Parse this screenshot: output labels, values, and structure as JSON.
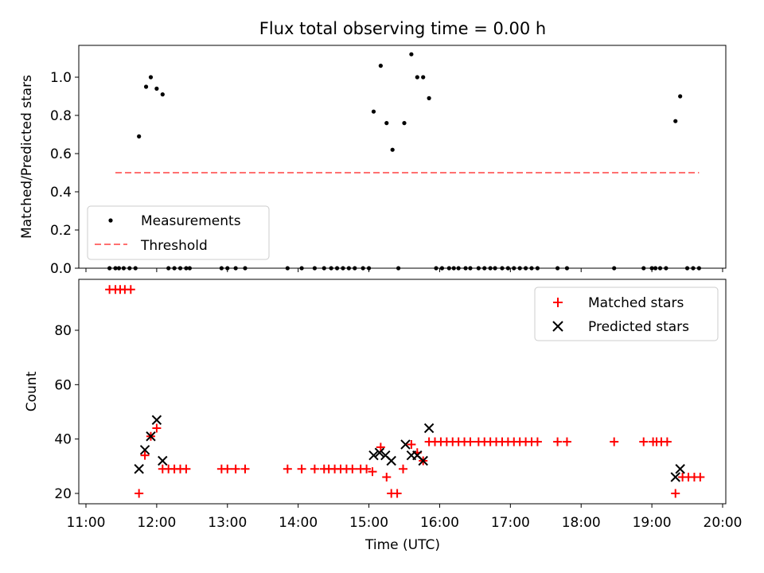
{
  "chart_data": [
    {
      "type": "scatter",
      "title": "Flux total observing time = 0.00 h",
      "xlabel": "",
      "ylabel": "Matched/Predicted stars",
      "xlim": [
        "11:00",
        "20:00"
      ],
      "ylim": [
        0,
        1.17
      ],
      "yticks": [
        "0.0",
        "0.2",
        "0.4",
        "0.6",
        "0.8",
        "1.0"
      ],
      "legend_location": "lower-left",
      "series": [
        {
          "name": "Measurements",
          "marker": "dot",
          "color": "#000000",
          "points": [
            [
              "11:20",
              0.0
            ],
            [
              "11:25",
              0.0
            ],
            [
              "11:28",
              0.0
            ],
            [
              "11:32",
              0.0
            ],
            [
              "11:37",
              0.0
            ],
            [
              "11:42",
              0.0
            ],
            [
              "11:45",
              0.69
            ],
            [
              "11:51",
              0.95
            ],
            [
              "11:55",
              1.0
            ],
            [
              "12:00",
              0.94
            ],
            [
              "12:05",
              0.91
            ],
            [
              "12:10",
              0.0
            ],
            [
              "12:15",
              0.0
            ],
            [
              "12:20",
              0.0
            ],
            [
              "12:25",
              0.0
            ],
            [
              "12:28",
              0.0
            ],
            [
              "12:55",
              0.0
            ],
            [
              "13:00",
              0.0
            ],
            [
              "13:07",
              0.0
            ],
            [
              "13:15",
              0.0
            ],
            [
              "13:51",
              0.0
            ],
            [
              "14:03",
              0.0
            ],
            [
              "14:14",
              0.0
            ],
            [
              "14:22",
              0.0
            ],
            [
              "14:28",
              0.0
            ],
            [
              "14:33",
              0.0
            ],
            [
              "14:38",
              0.0
            ],
            [
              "14:43",
              0.0
            ],
            [
              "14:48",
              0.0
            ],
            [
              "14:55",
              0.0
            ],
            [
              "15:00",
              0.0
            ],
            [
              "15:04",
              0.82
            ],
            [
              "15:10",
              1.06
            ],
            [
              "15:15",
              0.76
            ],
            [
              "15:20",
              0.62
            ],
            [
              "15:25",
              0.0
            ],
            [
              "15:30",
              0.76
            ],
            [
              "15:36",
              1.12
            ],
            [
              "15:41",
              1.0
            ],
            [
              "15:46",
              1.0
            ],
            [
              "15:51",
              0.89
            ],
            [
              "15:57",
              0.0
            ],
            [
              "16:02",
              0.0
            ],
            [
              "16:08",
              0.0
            ],
            [
              "16:12",
              0.0
            ],
            [
              "16:16",
              0.0
            ],
            [
              "16:22",
              0.0
            ],
            [
              "16:26",
              0.0
            ],
            [
              "16:33",
              0.0
            ],
            [
              "16:38",
              0.0
            ],
            [
              "16:43",
              0.0
            ],
            [
              "16:47",
              0.0
            ],
            [
              "16:53",
              0.0
            ],
            [
              "16:58",
              0.0
            ],
            [
              "17:03",
              0.0
            ],
            [
              "17:08",
              0.0
            ],
            [
              "17:13",
              0.0
            ],
            [
              "17:18",
              0.0
            ],
            [
              "17:23",
              0.0
            ],
            [
              "17:40",
              0.0
            ],
            [
              "17:48",
              0.0
            ],
            [
              "18:28",
              0.0
            ],
            [
              "18:53",
              0.0
            ],
            [
              "19:00",
              0.0
            ],
            [
              "19:03",
              0.0
            ],
            [
              "19:07",
              0.0
            ],
            [
              "19:12",
              0.0
            ],
            [
              "19:20",
              0.77
            ],
            [
              "19:24",
              0.9
            ],
            [
              "19:30",
              0.0
            ],
            [
              "19:35",
              0.0
            ],
            [
              "19:40",
              0.0
            ]
          ]
        },
        {
          "name": "Threshold",
          "marker": "dashed-line",
          "color": "#ff7070",
          "points": [
            [
              "11:25",
              0.5
            ],
            [
              "19:40",
              0.5
            ]
          ]
        }
      ]
    },
    {
      "type": "scatter",
      "xlabel": "Time (UTC)",
      "ylabel": "Count",
      "xlim": [
        "11:00",
        "20:00"
      ],
      "ylim": [
        16,
        97
      ],
      "xticks": [
        "11:00",
        "12:00",
        "13:00",
        "14:00",
        "15:00",
        "16:00",
        "17:00",
        "18:00",
        "19:00",
        "20:00"
      ],
      "yticks": [
        "20",
        "40",
        "60",
        "80"
      ],
      "legend_location": "upper-right",
      "series": [
        {
          "name": "Matched stars",
          "marker": "plus",
          "color": "#ff0000",
          "points": [
            [
              "11:20",
              95
            ],
            [
              "11:25",
              95
            ],
            [
              "11:29",
              95
            ],
            [
              "11:33",
              95
            ],
            [
              "11:38",
              95
            ],
            [
              "11:45",
              20
            ],
            [
              "11:50",
              34
            ],
            [
              "11:55",
              41
            ],
            [
              "12:00",
              44
            ],
            [
              "12:05",
              29
            ],
            [
              "12:10",
              29
            ],
            [
              "12:15",
              29
            ],
            [
              "12:20",
              29
            ],
            [
              "12:25",
              29
            ],
            [
              "12:55",
              29
            ],
            [
              "13:00",
              29
            ],
            [
              "13:07",
              29
            ],
            [
              "13:15",
              29
            ],
            [
              "13:51",
              29
            ],
            [
              "14:03",
              29
            ],
            [
              "14:14",
              29
            ],
            [
              "14:22",
              29
            ],
            [
              "14:26",
              29
            ],
            [
              "14:31",
              29
            ],
            [
              "14:36",
              29
            ],
            [
              "14:41",
              29
            ],
            [
              "14:46",
              29
            ],
            [
              "14:53",
              29
            ],
            [
              "14:58",
              29
            ],
            [
              "15:03",
              28
            ],
            [
              "15:10",
              37
            ],
            [
              "15:15",
              26
            ],
            [
              "15:19",
              20
            ],
            [
              "15:24",
              20
            ],
            [
              "15:29",
              29
            ],
            [
              "15:36",
              38
            ],
            [
              "15:41",
              35
            ],
            [
              "15:46",
              32
            ],
            [
              "15:51",
              39
            ],
            [
              "15:56",
              39
            ],
            [
              "16:01",
              39
            ],
            [
              "16:06",
              39
            ],
            [
              "16:11",
              39
            ],
            [
              "16:16",
              39
            ],
            [
              "16:21",
              39
            ],
            [
              "16:26",
              39
            ],
            [
              "16:33",
              39
            ],
            [
              "16:38",
              39
            ],
            [
              "16:43",
              39
            ],
            [
              "16:48",
              39
            ],
            [
              "16:53",
              39
            ],
            [
              "16:58",
              39
            ],
            [
              "17:03",
              39
            ],
            [
              "17:08",
              39
            ],
            [
              "17:13",
              39
            ],
            [
              "17:18",
              39
            ],
            [
              "17:23",
              39
            ],
            [
              "17:40",
              39
            ],
            [
              "17:48",
              39
            ],
            [
              "18:28",
              39
            ],
            [
              "18:53",
              39
            ],
            [
              "19:01",
              39
            ],
            [
              "19:04",
              39
            ],
            [
              "19:08",
              39
            ],
            [
              "19:13",
              39
            ],
            [
              "19:20",
              20
            ],
            [
              "19:26",
              26
            ],
            [
              "19:31",
              26
            ],
            [
              "19:36",
              26
            ],
            [
              "19:41",
              26
            ]
          ]
        },
        {
          "name": "Predicted stars",
          "marker": "x",
          "color": "#000000",
          "points": [
            [
              "11:45",
              29
            ],
            [
              "11:50",
              36
            ],
            [
              "11:55",
              41
            ],
            [
              "12:00",
              47
            ],
            [
              "12:05",
              32
            ],
            [
              "15:04",
              34
            ],
            [
              "15:09",
              35
            ],
            [
              "15:14",
              34
            ],
            [
              "15:19",
              32
            ],
            [
              "15:31",
              38
            ],
            [
              "15:36",
              34
            ],
            [
              "15:41",
              34
            ],
            [
              "15:46",
              32
            ],
            [
              "15:51",
              44
            ],
            [
              "19:20",
              26
            ],
            [
              "19:24",
              29
            ]
          ]
        }
      ]
    }
  ]
}
